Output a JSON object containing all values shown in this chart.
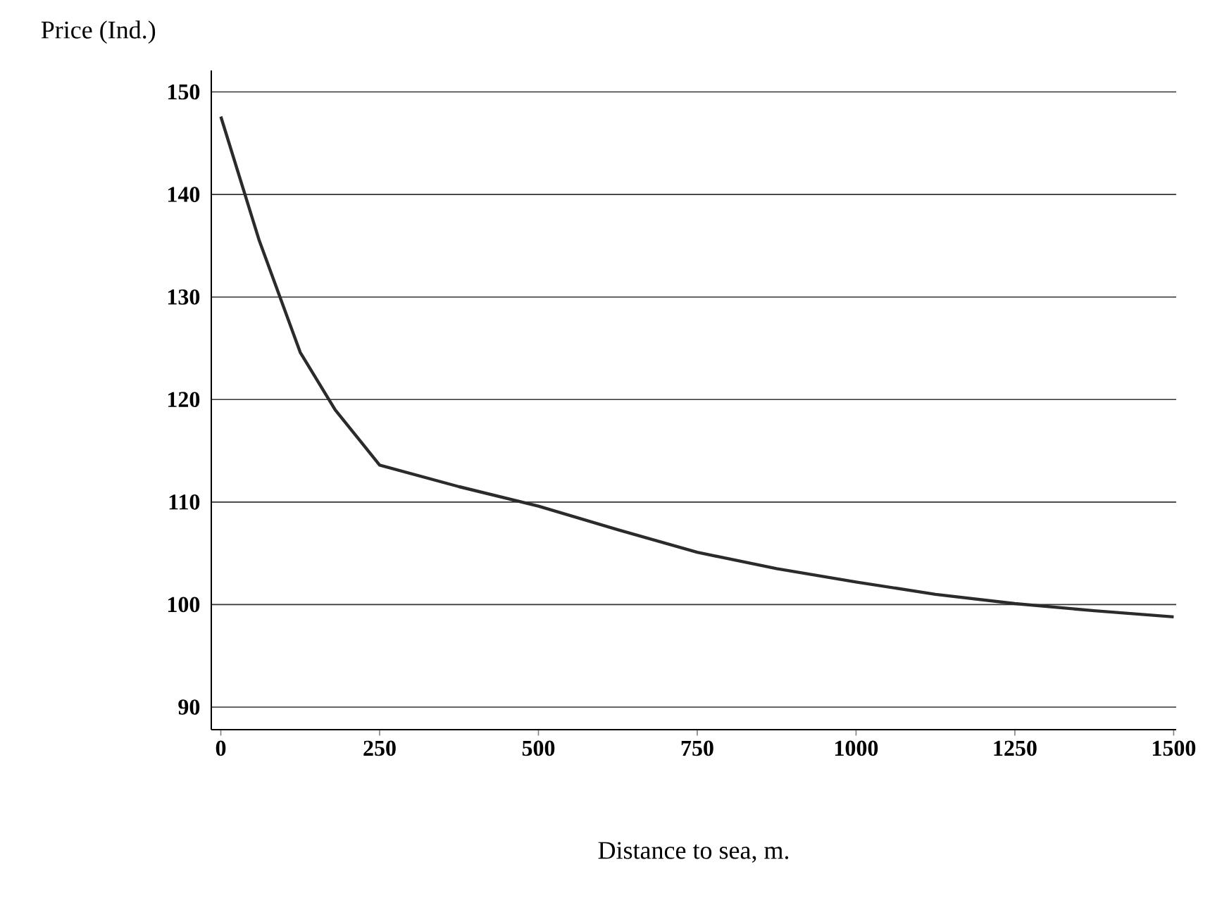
{
  "chart_data": {
    "type": "line",
    "xlabel": "Distance to sea, m.",
    "ylabel": "Price (Ind.)",
    "series": [
      {
        "color": "#2b2b2b",
        "x": [
          0,
          60,
          125,
          180,
          250,
          375,
          500,
          625,
          750,
          875,
          1000,
          1125,
          1250,
          1375,
          1500
        ],
        "values": [
          147.6,
          135.6,
          124.6,
          119.0,
          113.6,
          111.5,
          109.6,
          107.3,
          105.1,
          103.5,
          102.2,
          101.0,
          100.1,
          99.4,
          98.8
        ]
      }
    ],
    "xlim": [
      -15,
      1504
    ],
    "ylim": [
      87.8,
      152.1
    ],
    "xticks": [
      0,
      250,
      500,
      750,
      1000,
      1250,
      1500
    ],
    "yticks": [
      90,
      100,
      110,
      120,
      130,
      140,
      150
    ],
    "grid": "y",
    "marker": "none",
    "line_style": "solid"
  }
}
